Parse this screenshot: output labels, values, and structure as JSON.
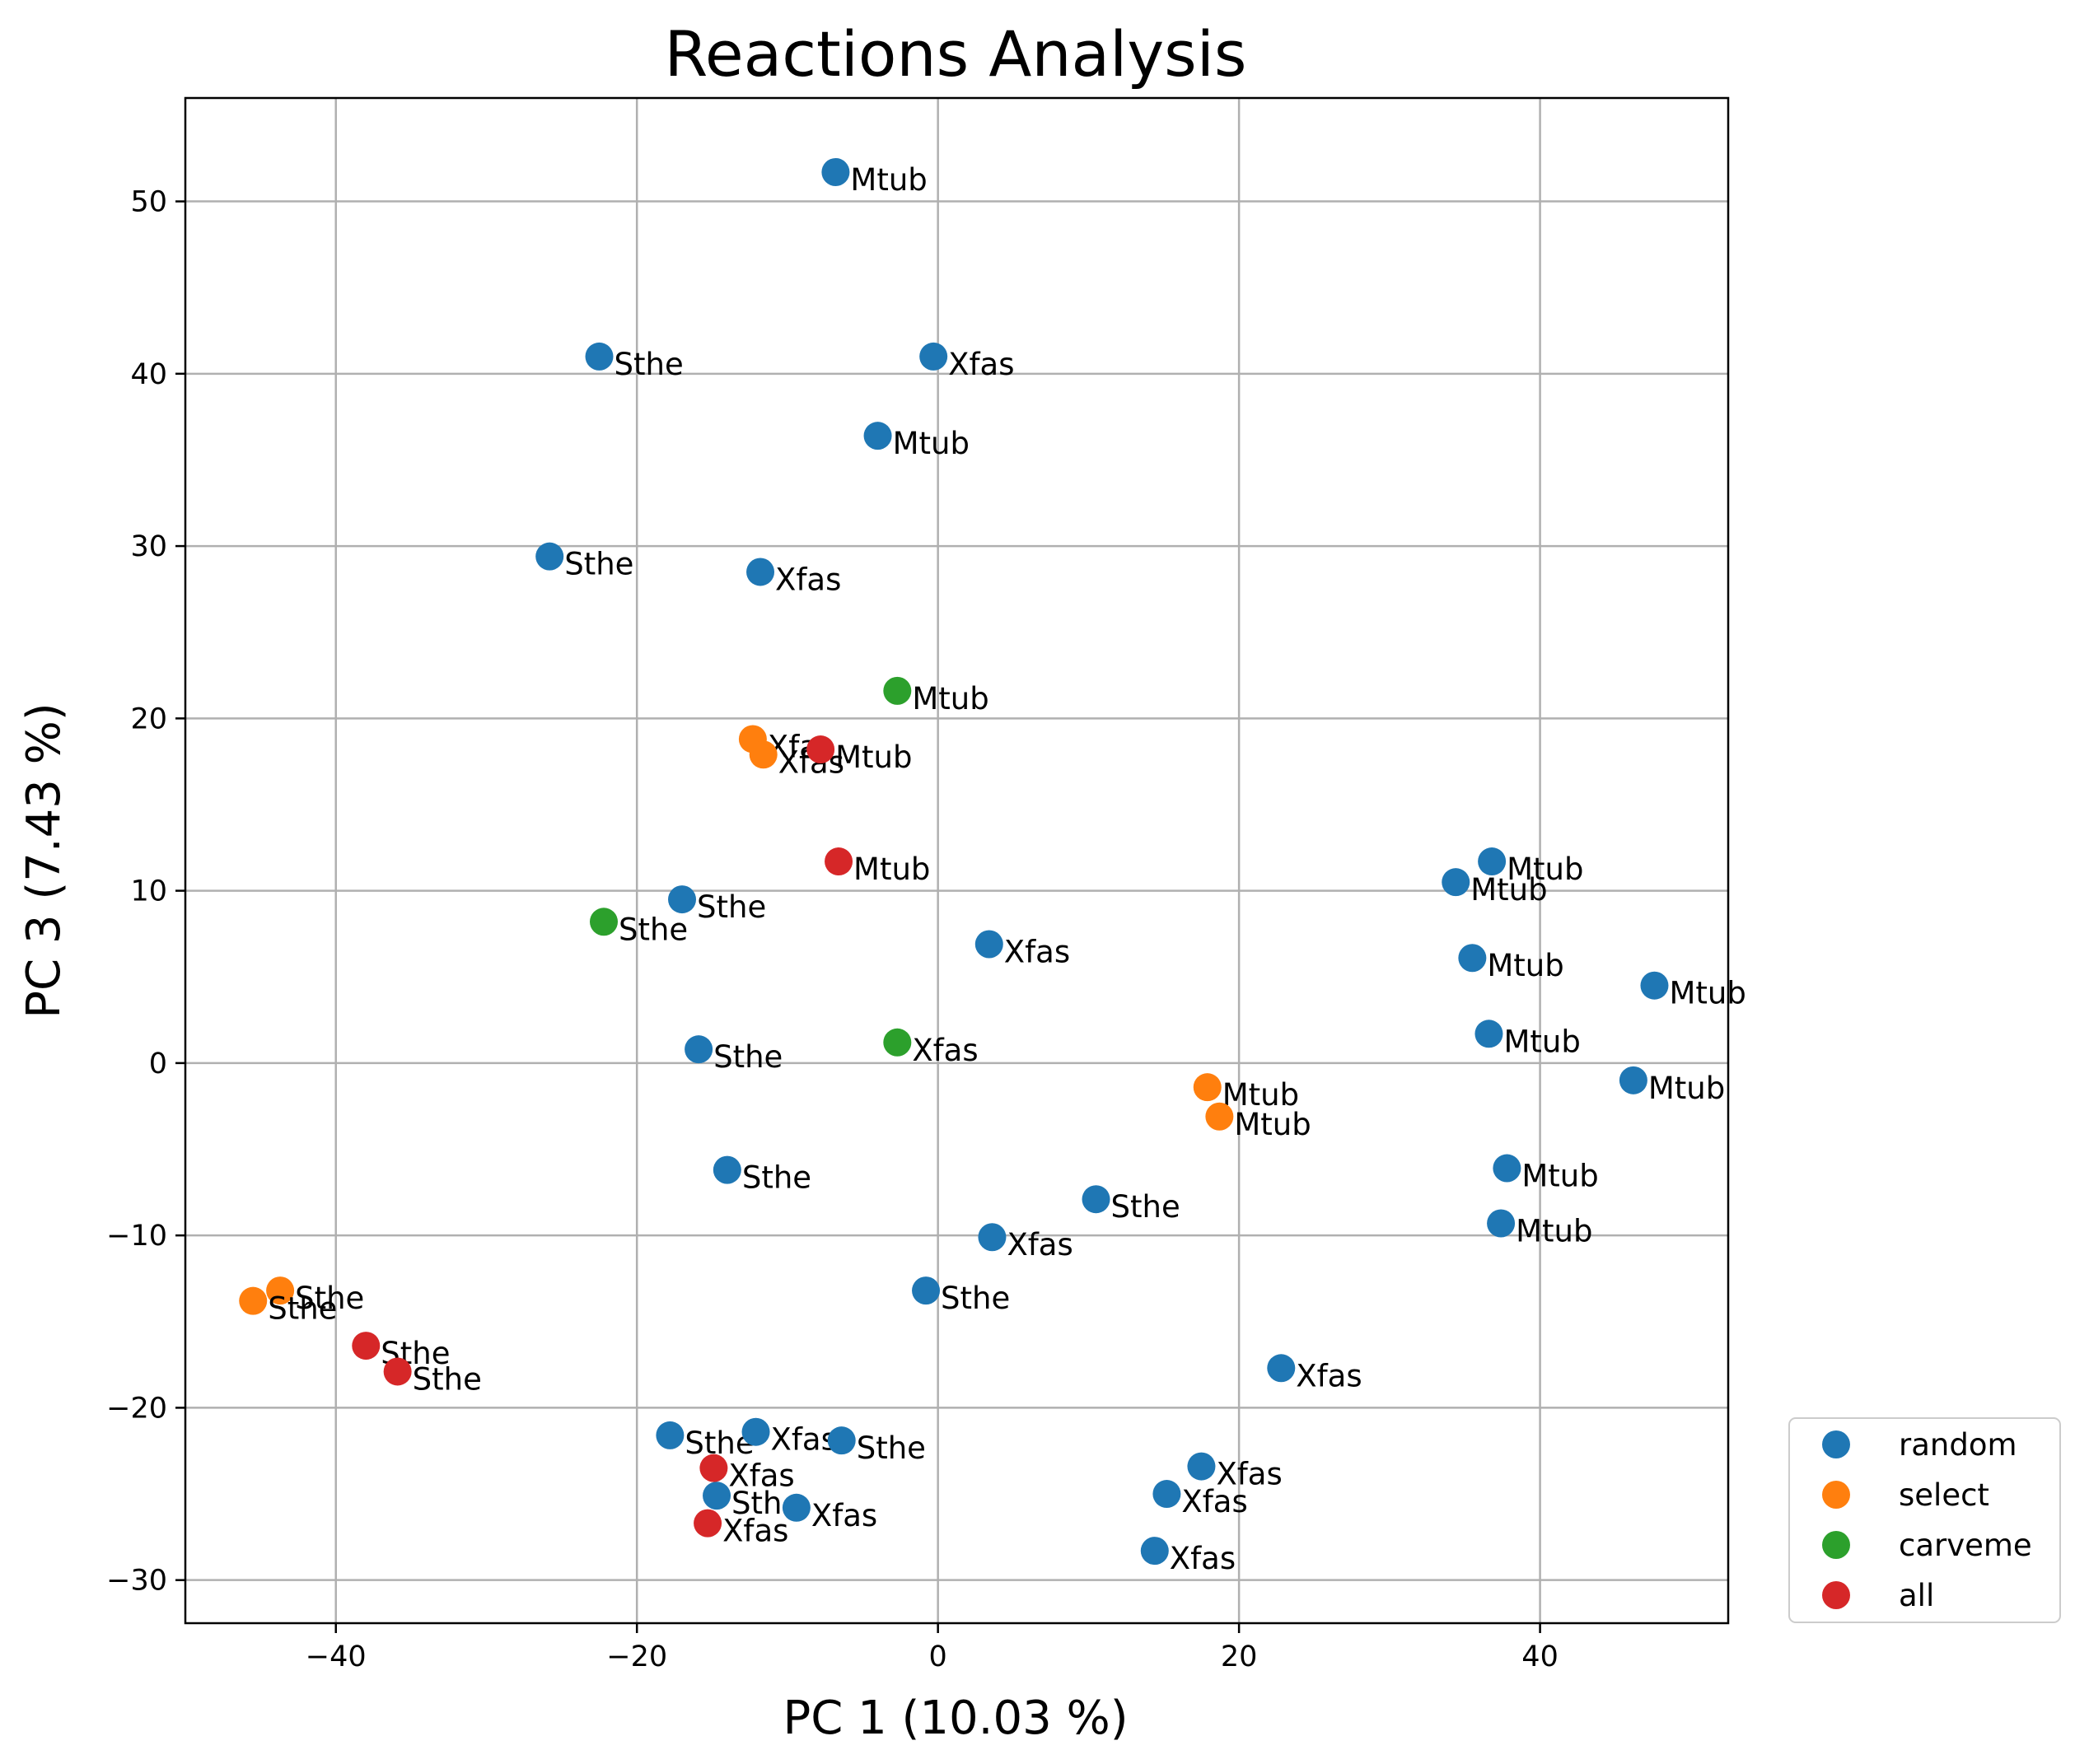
{
  "chart_data": {
    "type": "scatter",
    "title": "Reactions Analysis",
    "xlabel": "PC 1 (10.03 %)",
    "ylabel": "PC 3 (7.43 %)",
    "xlim": [
      -50,
      52.5
    ],
    "ylim": [
      -32.5,
      56
    ],
    "xticks": [
      -40,
      -20,
      0,
      20,
      40
    ],
    "yticks": [
      -30,
      -20,
      -10,
      0,
      10,
      20,
      30,
      40,
      50
    ],
    "grid": true,
    "legend_position": "outside-bottom-right",
    "series": [
      {
        "name": "random",
        "color": "#1f77b4",
        "points": [
          {
            "x": -6.8,
            "y": 51.7,
            "label": "Mtub"
          },
          {
            "x": -22.5,
            "y": 41.0,
            "label": "Sthe"
          },
          {
            "x": -0.3,
            "y": 41.0,
            "label": "Xfas"
          },
          {
            "x": -4.0,
            "y": 36.4,
            "label": "Mtub"
          },
          {
            "x": -25.8,
            "y": 29.4,
            "label": "Sthe"
          },
          {
            "x": -11.8,
            "y": 28.5,
            "label": "Xfas"
          },
          {
            "x": -17.0,
            "y": 9.5,
            "label": "Sthe"
          },
          {
            "x": 3.4,
            "y": 6.9,
            "label": "Xfas"
          },
          {
            "x": -15.9,
            "y": 0.8,
            "label": "Sthe"
          },
          {
            "x": -14.0,
            "y": -6.2,
            "label": "Sthe"
          },
          {
            "x": 10.5,
            "y": -7.9,
            "label": "Sthe"
          },
          {
            "x": 3.6,
            "y": -10.1,
            "label": "Xfas"
          },
          {
            "x": -0.8,
            "y": -13.2,
            "label": "Sthe"
          },
          {
            "x": 22.8,
            "y": -17.7,
            "label": "Xfas"
          },
          {
            "x": -17.8,
            "y": -21.6,
            "label": "Sthe"
          },
          {
            "x": -12.1,
            "y": -21.4,
            "label": "Xfas"
          },
          {
            "x": -6.4,
            "y": -21.9,
            "label": "Sthe"
          },
          {
            "x": -14.7,
            "y": -25.1,
            "label": "Sthe"
          },
          {
            "x": -9.4,
            "y": -25.8,
            "label": "Xfas"
          },
          {
            "x": 17.5,
            "y": -23.4,
            "label": "Xfas"
          },
          {
            "x": 15.2,
            "y": -25.0,
            "label": "Xfas"
          },
          {
            "x": 14.4,
            "y": -28.3,
            "label": "Xfas"
          },
          {
            "x": 36.8,
            "y": 11.7,
            "label": "Mtub"
          },
          {
            "x": 34.4,
            "y": 10.5,
            "label": "Mtub"
          },
          {
            "x": 35.5,
            "y": 6.1,
            "label": "Mtub"
          },
          {
            "x": 47.6,
            "y": 4.5,
            "label": "Mtub"
          },
          {
            "x": 36.6,
            "y": 1.7,
            "label": "Mtub"
          },
          {
            "x": 46.2,
            "y": -1.0,
            "label": "Mtub"
          },
          {
            "x": 37.8,
            "y": -6.1,
            "label": "Mtub"
          },
          {
            "x": 37.4,
            "y": -9.3,
            "label": "Mtub"
          }
        ]
      },
      {
        "name": "select",
        "color": "#ff7f0e",
        "points": [
          {
            "x": -12.3,
            "y": 18.8,
            "label": "Xfas"
          },
          {
            "x": -11.6,
            "y": 17.9,
            "label": "Xfas"
          },
          {
            "x": 17.9,
            "y": -1.4,
            "label": "Mtub"
          },
          {
            "x": 18.7,
            "y": -3.1,
            "label": "Mtub"
          },
          {
            "x": -43.7,
            "y": -13.2,
            "label": "Sthe"
          },
          {
            "x": -45.5,
            "y": -13.8,
            "label": "Sthe"
          }
        ]
      },
      {
        "name": "carveme",
        "color": "#2ca02c",
        "points": [
          {
            "x": -2.7,
            "y": 21.6,
            "label": "Mtub"
          },
          {
            "x": -22.2,
            "y": 8.2,
            "label": "Sthe"
          },
          {
            "x": -2.7,
            "y": 1.2,
            "label": "Xfas"
          }
        ]
      },
      {
        "name": "all",
        "color": "#d62728",
        "points": [
          {
            "x": -7.8,
            "y": 18.2,
            "label": "Mtub"
          },
          {
            "x": -6.6,
            "y": 11.7,
            "label": "Mtub"
          },
          {
            "x": -38.0,
            "y": -16.4,
            "label": "Sthe"
          },
          {
            "x": -35.9,
            "y": -17.9,
            "label": "Sthe"
          },
          {
            "x": -14.9,
            "y": -23.5,
            "label": "Xfas"
          },
          {
            "x": -15.3,
            "y": -26.7,
            "label": "Xfas"
          }
        ]
      }
    ]
  }
}
